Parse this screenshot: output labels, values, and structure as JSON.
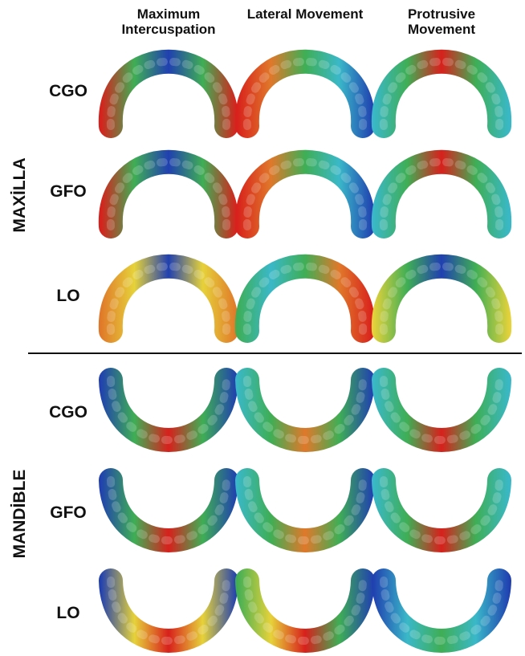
{
  "columns": [
    "Maximum Intercuspation",
    "Lateral Movement",
    "Protrusive Movement"
  ],
  "sections": [
    {
      "label": "MAXİLLA",
      "rows": [
        "CGO",
        "GFO",
        "LO"
      ]
    },
    {
      "label": "MANDİBLE",
      "rows": [
        "CGO",
        "GFO",
        "LO"
      ]
    }
  ]
}
